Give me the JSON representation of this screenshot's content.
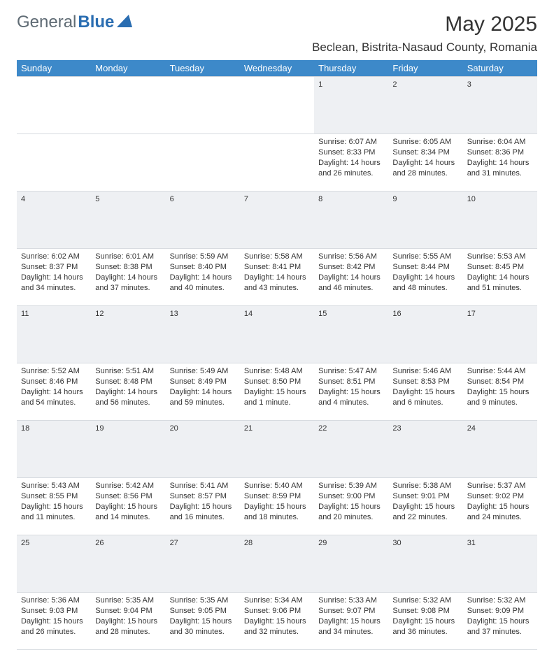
{
  "brand": {
    "text_general": "General",
    "text_blue": "Blue",
    "icon_name": "triangle-logo-icon",
    "icon_color": "#2a6db1"
  },
  "title": "May 2025",
  "location": "Beclean, Bistrita-Nasaud County, Romania",
  "colors": {
    "header_bg": "#3d89c9",
    "header_text": "#ffffff",
    "daynum_bg": "#eef0f3",
    "daynum_text": "#606a73",
    "body_text": "#333333",
    "rule": "#d7dbe0"
  },
  "weekdays": [
    "Sunday",
    "Monday",
    "Tuesday",
    "Wednesday",
    "Thursday",
    "Friday",
    "Saturday"
  ],
  "weeks": [
    [
      null,
      null,
      null,
      null,
      {
        "n": "1",
        "sr": "Sunrise: 6:07 AM",
        "ss": "Sunset: 8:33 PM",
        "d1": "Daylight: 14 hours",
        "d2": "and 26 minutes."
      },
      {
        "n": "2",
        "sr": "Sunrise: 6:05 AM",
        "ss": "Sunset: 8:34 PM",
        "d1": "Daylight: 14 hours",
        "d2": "and 28 minutes."
      },
      {
        "n": "3",
        "sr": "Sunrise: 6:04 AM",
        "ss": "Sunset: 8:36 PM",
        "d1": "Daylight: 14 hours",
        "d2": "and 31 minutes."
      }
    ],
    [
      {
        "n": "4",
        "sr": "Sunrise: 6:02 AM",
        "ss": "Sunset: 8:37 PM",
        "d1": "Daylight: 14 hours",
        "d2": "and 34 minutes."
      },
      {
        "n": "5",
        "sr": "Sunrise: 6:01 AM",
        "ss": "Sunset: 8:38 PM",
        "d1": "Daylight: 14 hours",
        "d2": "and 37 minutes."
      },
      {
        "n": "6",
        "sr": "Sunrise: 5:59 AM",
        "ss": "Sunset: 8:40 PM",
        "d1": "Daylight: 14 hours",
        "d2": "and 40 minutes."
      },
      {
        "n": "7",
        "sr": "Sunrise: 5:58 AM",
        "ss": "Sunset: 8:41 PM",
        "d1": "Daylight: 14 hours",
        "d2": "and 43 minutes."
      },
      {
        "n": "8",
        "sr": "Sunrise: 5:56 AM",
        "ss": "Sunset: 8:42 PM",
        "d1": "Daylight: 14 hours",
        "d2": "and 46 minutes."
      },
      {
        "n": "9",
        "sr": "Sunrise: 5:55 AM",
        "ss": "Sunset: 8:44 PM",
        "d1": "Daylight: 14 hours",
        "d2": "and 48 minutes."
      },
      {
        "n": "10",
        "sr": "Sunrise: 5:53 AM",
        "ss": "Sunset: 8:45 PM",
        "d1": "Daylight: 14 hours",
        "d2": "and 51 minutes."
      }
    ],
    [
      {
        "n": "11",
        "sr": "Sunrise: 5:52 AM",
        "ss": "Sunset: 8:46 PM",
        "d1": "Daylight: 14 hours",
        "d2": "and 54 minutes."
      },
      {
        "n": "12",
        "sr": "Sunrise: 5:51 AM",
        "ss": "Sunset: 8:48 PM",
        "d1": "Daylight: 14 hours",
        "d2": "and 56 minutes."
      },
      {
        "n": "13",
        "sr": "Sunrise: 5:49 AM",
        "ss": "Sunset: 8:49 PM",
        "d1": "Daylight: 14 hours",
        "d2": "and 59 minutes."
      },
      {
        "n": "14",
        "sr": "Sunrise: 5:48 AM",
        "ss": "Sunset: 8:50 PM",
        "d1": "Daylight: 15 hours",
        "d2": "and 1 minute."
      },
      {
        "n": "15",
        "sr": "Sunrise: 5:47 AM",
        "ss": "Sunset: 8:51 PM",
        "d1": "Daylight: 15 hours",
        "d2": "and 4 minutes."
      },
      {
        "n": "16",
        "sr": "Sunrise: 5:46 AM",
        "ss": "Sunset: 8:53 PM",
        "d1": "Daylight: 15 hours",
        "d2": "and 6 minutes."
      },
      {
        "n": "17",
        "sr": "Sunrise: 5:44 AM",
        "ss": "Sunset: 8:54 PM",
        "d1": "Daylight: 15 hours",
        "d2": "and 9 minutes."
      }
    ],
    [
      {
        "n": "18",
        "sr": "Sunrise: 5:43 AM",
        "ss": "Sunset: 8:55 PM",
        "d1": "Daylight: 15 hours",
        "d2": "and 11 minutes."
      },
      {
        "n": "19",
        "sr": "Sunrise: 5:42 AM",
        "ss": "Sunset: 8:56 PM",
        "d1": "Daylight: 15 hours",
        "d2": "and 14 minutes."
      },
      {
        "n": "20",
        "sr": "Sunrise: 5:41 AM",
        "ss": "Sunset: 8:57 PM",
        "d1": "Daylight: 15 hours",
        "d2": "and 16 minutes."
      },
      {
        "n": "21",
        "sr": "Sunrise: 5:40 AM",
        "ss": "Sunset: 8:59 PM",
        "d1": "Daylight: 15 hours",
        "d2": "and 18 minutes."
      },
      {
        "n": "22",
        "sr": "Sunrise: 5:39 AM",
        "ss": "Sunset: 9:00 PM",
        "d1": "Daylight: 15 hours",
        "d2": "and 20 minutes."
      },
      {
        "n": "23",
        "sr": "Sunrise: 5:38 AM",
        "ss": "Sunset: 9:01 PM",
        "d1": "Daylight: 15 hours",
        "d2": "and 22 minutes."
      },
      {
        "n": "24",
        "sr": "Sunrise: 5:37 AM",
        "ss": "Sunset: 9:02 PM",
        "d1": "Daylight: 15 hours",
        "d2": "and 24 minutes."
      }
    ],
    [
      {
        "n": "25",
        "sr": "Sunrise: 5:36 AM",
        "ss": "Sunset: 9:03 PM",
        "d1": "Daylight: 15 hours",
        "d2": "and 26 minutes."
      },
      {
        "n": "26",
        "sr": "Sunrise: 5:35 AM",
        "ss": "Sunset: 9:04 PM",
        "d1": "Daylight: 15 hours",
        "d2": "and 28 minutes."
      },
      {
        "n": "27",
        "sr": "Sunrise: 5:35 AM",
        "ss": "Sunset: 9:05 PM",
        "d1": "Daylight: 15 hours",
        "d2": "and 30 minutes."
      },
      {
        "n": "28",
        "sr": "Sunrise: 5:34 AM",
        "ss": "Sunset: 9:06 PM",
        "d1": "Daylight: 15 hours",
        "d2": "and 32 minutes."
      },
      {
        "n": "29",
        "sr": "Sunrise: 5:33 AM",
        "ss": "Sunset: 9:07 PM",
        "d1": "Daylight: 15 hours",
        "d2": "and 34 minutes."
      },
      {
        "n": "30",
        "sr": "Sunrise: 5:32 AM",
        "ss": "Sunset: 9:08 PM",
        "d1": "Daylight: 15 hours",
        "d2": "and 36 minutes."
      },
      {
        "n": "31",
        "sr": "Sunrise: 5:32 AM",
        "ss": "Sunset: 9:09 PM",
        "d1": "Daylight: 15 hours",
        "d2": "and 37 minutes."
      }
    ]
  ]
}
